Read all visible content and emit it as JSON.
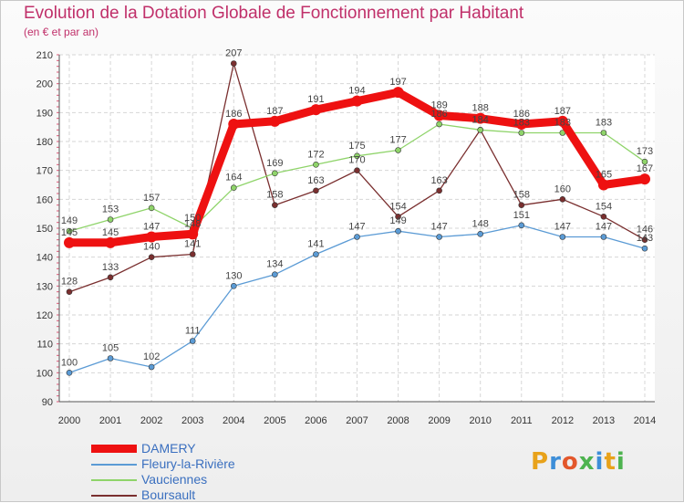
{
  "header": {
    "title": "Evolution de la Dotation Globale de Fonctionnement par Habitant",
    "subtitle": "(en € et par an)"
  },
  "logo": {
    "text": "Proxiti",
    "colors": [
      "#e8a21a",
      "#3d8ed8",
      "#e3572b",
      "#4db34f",
      "#3d8ed8",
      "#e8a21a",
      "#4db34f"
    ]
  },
  "chart_data": {
    "type": "line",
    "title": "Evolution de la Dotation Globale de Fonctionnement par Habitant",
    "subtitle": "(en € et par an)",
    "xlabel": "",
    "ylabel": "",
    "ylim": [
      90,
      210
    ],
    "yticks": [
      90,
      100,
      110,
      120,
      130,
      140,
      150,
      160,
      170,
      180,
      190,
      200,
      210
    ],
    "grid": true,
    "legend_position": "bottom-left",
    "x": [
      "2000",
      "2001",
      "2002",
      "2003",
      "2004",
      "2005",
      "2006",
      "2007",
      "2008",
      "2009",
      "2010",
      "2011",
      "2012",
      "2013",
      "2014"
    ],
    "series": [
      {
        "name": "DAMERY",
        "color": "#ee1111",
        "values": [
          145,
          145,
          147,
          148,
          186,
          187,
          191,
          194,
          197,
          189,
          188,
          186,
          187,
          165,
          167
        ]
      },
      {
        "name": "Fleury-la-Rivière",
        "color": "#5b9bd5",
        "values": [
          100,
          105,
          102,
          111,
          130,
          134,
          141,
          147,
          149,
          147,
          148,
          151,
          147,
          147,
          143
        ]
      },
      {
        "name": "Vauciennes",
        "color": "#8fd46a",
        "values": [
          149,
          153,
          157,
          150,
          164,
          169,
          172,
          175,
          177,
          186,
          184,
          183,
          183,
          183,
          173
        ]
      },
      {
        "name": "Boursault",
        "color": "#7a2f2f",
        "values": [
          128,
          133,
          140,
          141,
          207,
          158,
          163,
          170,
          154,
          163,
          184,
          158,
          160,
          154,
          146
        ]
      }
    ]
  }
}
